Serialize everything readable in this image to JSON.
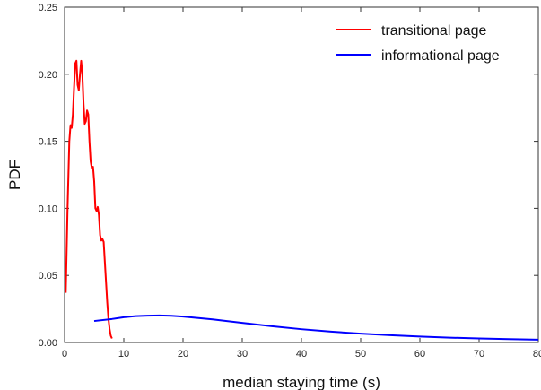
{
  "chart_data": {
    "type": "line",
    "title": "",
    "xlabel": "median staying time (s)",
    "ylabel": "PDF",
    "xlim": [
      0,
      80
    ],
    "ylim": [
      0,
      0.25
    ],
    "x_ticks": [
      "0",
      "10",
      "20",
      "30",
      "40",
      "50",
      "60",
      "70",
      "80"
    ],
    "y_ticks": [
      "0.00",
      "0.05",
      "0.10",
      "0.15",
      "0.20",
      "0.25"
    ],
    "grid": false,
    "legend_position": "top-right",
    "series": [
      {
        "name": "transitional page",
        "color": "#ff0000",
        "x": [
          0.2,
          0.5,
          0.8,
          1.0,
          1.2,
          1.4,
          1.6,
          1.8,
          2.0,
          2.2,
          2.4,
          2.6,
          2.8,
          3.0,
          3.2,
          3.4,
          3.6,
          3.8,
          4.0,
          4.2,
          4.4,
          4.6,
          4.8,
          5.0,
          5.2,
          5.4,
          5.6,
          5.8,
          6.0,
          6.2,
          6.4,
          6.6,
          6.8,
          7.0,
          7.2,
          7.4,
          7.6,
          7.8,
          8.0
        ],
        "y": [
          0.037,
          0.1,
          0.15,
          0.162,
          0.16,
          0.17,
          0.19,
          0.208,
          0.21,
          0.192,
          0.188,
          0.2,
          0.21,
          0.2,
          0.178,
          0.163,
          0.165,
          0.173,
          0.17,
          0.15,
          0.135,
          0.13,
          0.131,
          0.12,
          0.1,
          0.098,
          0.101,
          0.095,
          0.08,
          0.076,
          0.077,
          0.075,
          0.06,
          0.045,
          0.03,
          0.018,
          0.01,
          0.005,
          0.003
        ]
      },
      {
        "name": "informational page",
        "color": "#0000ff",
        "x": [
          5,
          8,
          10,
          12,
          14,
          16,
          18,
          20,
          25,
          30,
          35,
          40,
          45,
          50,
          55,
          60,
          65,
          70,
          75,
          80
        ],
        "y": [
          0.016,
          0.0175,
          0.0188,
          0.0196,
          0.02,
          0.0201,
          0.0199,
          0.0193,
          0.0172,
          0.0146,
          0.0121,
          0.0099,
          0.0081,
          0.0066,
          0.0054,
          0.0044,
          0.0036,
          0.003,
          0.0025,
          0.0021
        ]
      }
    ]
  }
}
